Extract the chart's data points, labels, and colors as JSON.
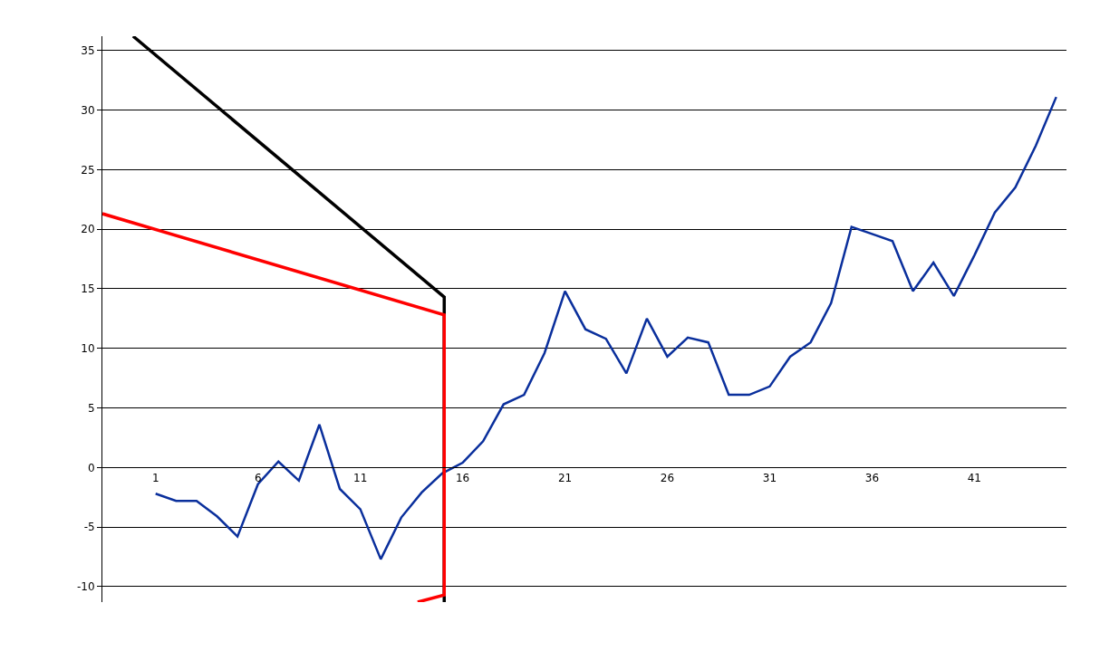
{
  "chart_data": {
    "type": "line",
    "xlim": [
      -1.6,
      45.5
    ],
    "xticks": [
      1,
      6,
      11,
      16,
      21,
      26,
      31,
      36,
      41
    ],
    "ylim": [
      -11.3,
      36.2
    ],
    "yticks": [
      -10,
      -5,
      0,
      5,
      10,
      15,
      20,
      25,
      30,
      35
    ],
    "grid": "y",
    "marker": "none",
    "line_style": "solid",
    "series": [
      {
        "color": "#0a2f9c",
        "x": [
          1,
          2,
          3,
          4,
          5,
          6,
          7,
          8,
          9,
          10,
          11,
          12,
          13,
          14,
          15,
          16,
          17,
          18,
          19,
          20,
          21,
          22,
          23,
          24,
          25,
          26,
          27,
          28,
          29,
          30,
          31,
          32,
          33,
          34,
          35,
          36,
          37,
          38,
          39,
          40,
          41,
          42,
          43,
          44,
          45
        ],
        "values": [
          -2.2,
          -2.8,
          -2.8,
          -4.1,
          -5.8,
          -1.4,
          0.5,
          -1.1,
          3.6,
          -1.8,
          -3.5,
          -7.7,
          -4.2,
          -2.1,
          -0.5,
          0.4,
          2.2,
          5.3,
          6.1,
          9.6,
          14.8,
          11.6,
          10.8,
          7.9,
          12.5,
          9.3,
          10.9,
          10.5,
          6.1,
          6.1,
          6.8,
          9.3,
          10.5,
          13.8,
          20.2,
          19.6,
          19.0,
          14.8,
          17.2,
          14.4,
          17.8,
          21.4,
          23.5,
          27.0,
          31.1
        ]
      },
      {
        "color": "#000000",
        "x": [
          -0.1,
          15.1,
          15.1
        ],
        "values": [
          36.2,
          14.3,
          -11.3
        ]
      },
      {
        "color": "#ff0000",
        "x": [
          -1.6,
          15.1,
          15.1,
          13.8
        ],
        "values": [
          21.3,
          12.8,
          -10.7,
          -11.3
        ]
      }
    ]
  }
}
